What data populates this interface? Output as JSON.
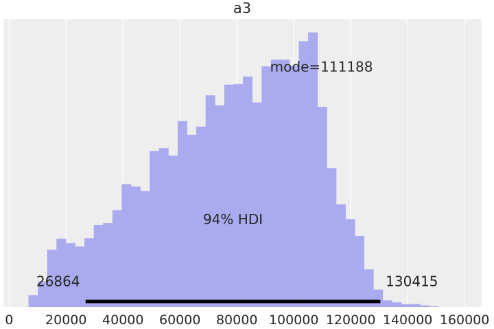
{
  "chart_data": {
    "type": "bar",
    "subtype": "histogram",
    "title": "a3",
    "xlabel": "",
    "ylabel": "",
    "xlim": [
      -2000,
      166000
    ],
    "ylim": [
      0,
      1.04
    ],
    "x_ticks": [
      0,
      20000,
      40000,
      60000,
      80000,
      100000,
      120000,
      140000,
      160000
    ],
    "x_tick_labels": [
      "0",
      "20000",
      "40000",
      "60000",
      "80000",
      "100000",
      "120000",
      "140000",
      "160000"
    ],
    "y_axis_shown": false,
    "grid": true,
    "bar_color": "#aaabee",
    "bins": {
      "x0": 6800,
      "width": 3275,
      "heights": [
        0.043,
        0.093,
        0.207,
        0.247,
        0.231,
        0.219,
        0.249,
        0.297,
        0.304,
        0.35,
        0.444,
        0.435,
        0.419,
        0.564,
        0.574,
        0.547,
        0.672,
        0.622,
        0.652,
        0.765,
        0.729,
        0.803,
        0.806,
        0.833,
        0.739,
        0.87,
        0.894,
        0.894,
        0.872,
        0.96,
        0.992,
        0.723,
        0.502,
        0.371,
        0.317,
        0.257,
        0.136,
        0.063,
        0.024,
        0.017,
        0.01,
        0.011,
        0.006,
        0.003
      ]
    },
    "hdi": {
      "label": "94% HDI",
      "low": 26864,
      "high": 130415,
      "low_label": "26864",
      "high_label": "130415",
      "line_color": "#000000"
    },
    "mode": {
      "value": 111188,
      "label": "mode=111188"
    },
    "colors": {
      "plot_background": "#eeeeee",
      "grid": "#ffffff",
      "text": "#262626"
    }
  }
}
